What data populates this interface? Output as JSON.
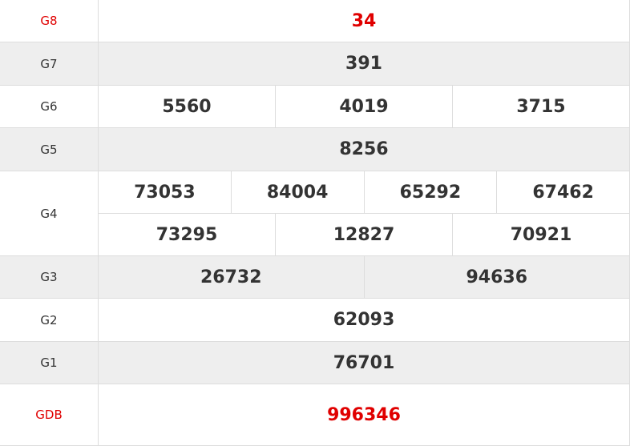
{
  "colors": {
    "highlight": "#e00000",
    "text": "#333333",
    "alt_row": "#eeeeee"
  },
  "rows": [
    {
      "label": "G8",
      "values": [
        [
          "34"
        ]
      ],
      "highlight": true
    },
    {
      "label": "G7",
      "values": [
        [
          "391"
        ]
      ]
    },
    {
      "label": "G6",
      "values": [
        [
          "5560",
          "4019",
          "3715"
        ]
      ]
    },
    {
      "label": "G5",
      "values": [
        [
          "8256"
        ]
      ]
    },
    {
      "label": "G4",
      "values": [
        [
          "73053",
          "84004",
          "65292",
          "67462"
        ],
        [
          "73295",
          "12827",
          "70921"
        ]
      ]
    },
    {
      "label": "G3",
      "values": [
        [
          "26732",
          "94636"
        ]
      ]
    },
    {
      "label": "G2",
      "values": [
        [
          "62093"
        ]
      ]
    },
    {
      "label": "G1",
      "values": [
        [
          "76701"
        ]
      ]
    },
    {
      "label": "GDB",
      "values": [
        [
          "996346"
        ]
      ],
      "highlight": true
    }
  ]
}
